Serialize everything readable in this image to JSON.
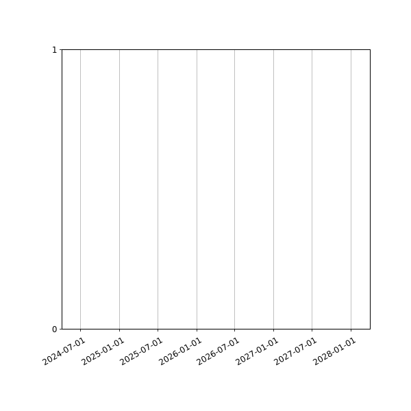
{
  "chart_data": {
    "type": "line",
    "title": "",
    "xlabel": "",
    "ylabel": "",
    "series": [],
    "x_axis_type": "date",
    "xlim": [
      "2024-04-05",
      "2028-04-04"
    ],
    "ylim": [
      0,
      1
    ],
    "x_ticks": [
      "2024-07-01",
      "2025-01-01",
      "2025-07-01",
      "2026-01-01",
      "2026-07-01",
      "2027-01-01",
      "2027-07-01",
      "2028-01-01"
    ],
    "y_ticks": [
      "0",
      "1"
    ],
    "grid": {
      "x": true,
      "y": false
    },
    "grid_color": "#b0b0b0",
    "tick_label_rotation_deg": 30
  }
}
